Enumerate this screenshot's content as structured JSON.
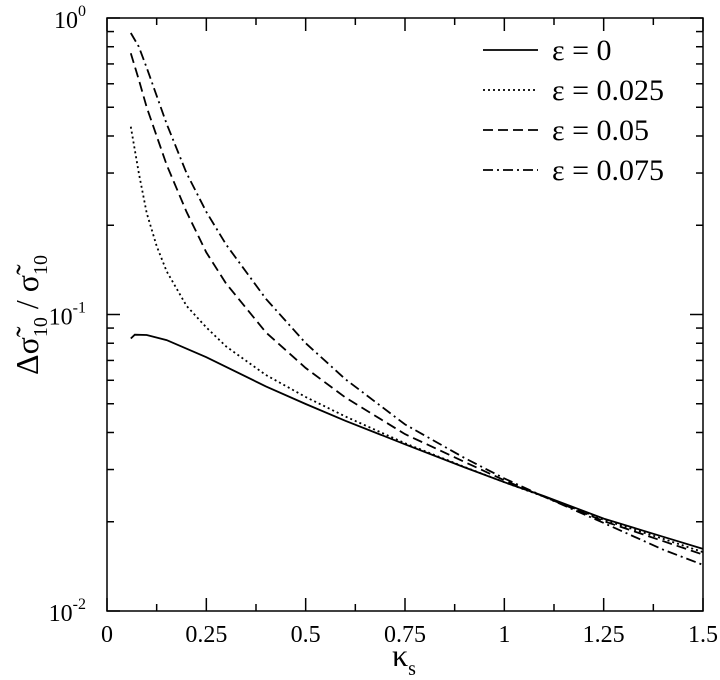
{
  "chart_data": {
    "type": "line",
    "title": "",
    "xlabel": "κ",
    "xlabel_sub": "s",
    "ylabel_parts": [
      "Δσ̃",
      "10",
      " / σ̃",
      "10"
    ],
    "xlim": [
      0,
      1.5
    ],
    "ylim": [
      0.01,
      1
    ],
    "yscale": "log",
    "grid": false,
    "legend_position": "top-right",
    "x_ticks": [
      0,
      0.25,
      0.5,
      0.75,
      1,
      1.25,
      1.5
    ],
    "x_tick_labels": [
      "0",
      "0.25",
      "0.5",
      "0.75",
      "1",
      "1.25",
      "1.5"
    ],
    "y_ticks": [
      {
        "value": 0.01,
        "base": "10",
        "exp": "-2"
      },
      {
        "value": 0.1,
        "base": "10",
        "exp": "-1"
      },
      {
        "value": 1,
        "base": "10",
        "exp": "0"
      }
    ],
    "series": [
      {
        "name": "ε = 0",
        "dash": "solid",
        "x": [
          0.06,
          0.07,
          0.1,
          0.15,
          0.25,
          0.4,
          0.5,
          0.6,
          0.75,
          0.9,
          1.0,
          1.1,
          1.25,
          1.4,
          1.5
        ],
        "y": [
          0.083,
          0.0855,
          0.0853,
          0.082,
          0.0718,
          0.0572,
          0.0499,
          0.0438,
          0.0365,
          0.0305,
          0.0272,
          0.0244,
          0.0205,
          0.0178,
          0.0162
        ]
      },
      {
        "name": "ε = 0.025",
        "dash": "dotted",
        "x": [
          0.06,
          0.08,
          0.1,
          0.125,
          0.15,
          0.2,
          0.25,
          0.3,
          0.4,
          0.5,
          0.6,
          0.75,
          0.9,
          1.0,
          1.1,
          1.25,
          1.4,
          1.5
        ],
        "y": [
          0.43,
          0.3,
          0.22,
          0.17,
          0.14,
          0.107,
          0.0905,
          0.078,
          0.0625,
          0.0527,
          0.0453,
          0.0368,
          0.0306,
          0.0272,
          0.0243,
          0.0203,
          0.0175,
          0.0158
        ]
      },
      {
        "name": "ε = 0.05",
        "dash": "dashed",
        "x": [
          0.06,
          0.08,
          0.1,
          0.15,
          0.2,
          0.25,
          0.3,
          0.4,
          0.5,
          0.6,
          0.75,
          0.9,
          1.0,
          1.1,
          1.25,
          1.4,
          1.5
        ],
        "y": [
          0.76,
          0.62,
          0.5,
          0.32,
          0.222,
          0.162,
          0.127,
          0.087,
          0.066,
          0.0525,
          0.0395,
          0.0318,
          0.0276,
          0.0243,
          0.0201,
          0.0172,
          0.0155
        ]
      },
      {
        "name": "ε = 0.075",
        "dash": "dashdot",
        "x": [
          0.06,
          0.08,
          0.1,
          0.15,
          0.2,
          0.25,
          0.3,
          0.4,
          0.5,
          0.6,
          0.75,
          0.9,
          1.0,
          1.1,
          1.25,
          1.4,
          1.5
        ],
        "y": [
          0.89,
          0.8,
          0.68,
          0.44,
          0.3,
          0.222,
          0.172,
          0.113,
          0.08,
          0.0605,
          0.0426,
          0.0328,
          0.028,
          0.0243,
          0.0198,
          0.0161,
          0.0143
        ]
      }
    ]
  }
}
